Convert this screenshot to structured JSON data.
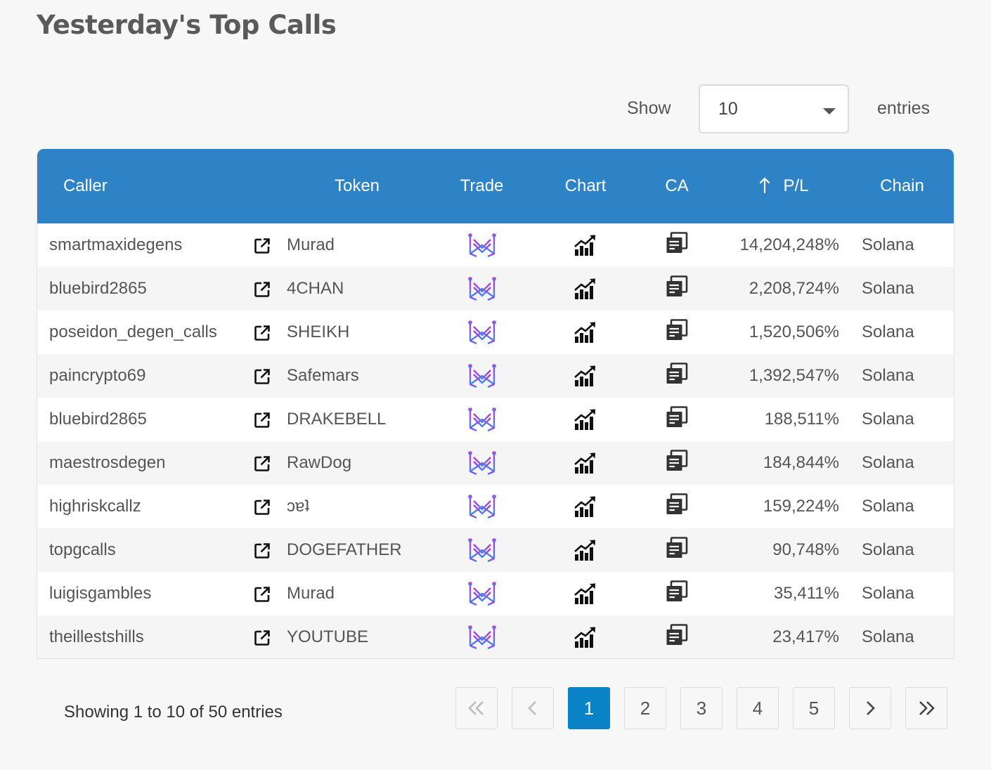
{
  "page": {
    "title": "Yesterday's Top Calls"
  },
  "length_menu": {
    "show_label": "Show",
    "selected": "10",
    "entries_label": "entries"
  },
  "table": {
    "headers": {
      "caller": "Caller",
      "token": "Token",
      "trade": "Trade",
      "chart": "Chart",
      "ca": "CA",
      "pl": "P/L",
      "chain": "Chain"
    },
    "rows": [
      {
        "caller": "smartmaxidegens",
        "token": "Murad",
        "pl": "14,204,248%",
        "chain": "Solana"
      },
      {
        "caller": "bluebird2865",
        "token": "4CHAN",
        "pl": "2,208,724%",
        "chain": "Solana"
      },
      {
        "caller": "poseidon_degen_calls",
        "token": "SHEIKH",
        "pl": "1,520,506%",
        "chain": "Solana"
      },
      {
        "caller": "paincrypto69",
        "token": "Safemars",
        "pl": "1,392,547%",
        "chain": "Solana"
      },
      {
        "caller": "bluebird2865",
        "token": "DRAKEBELL",
        "pl": "188,511%",
        "chain": "Solana"
      },
      {
        "caller": "maestrosdegen",
        "token": "RawDog",
        "pl": "184,844%",
        "chain": "Solana"
      },
      {
        "caller": "highriskcallz",
        "token": "ɔɐʇ",
        "pl": "159,224%",
        "chain": "Solana"
      },
      {
        "caller": "topgcalls",
        "token": "DOGEFATHER",
        "pl": "90,748%",
        "chain": "Solana"
      },
      {
        "caller": "luigisgambles",
        "token": "Murad",
        "pl": "35,411%",
        "chain": "Solana"
      },
      {
        "caller": "theillestshills",
        "token": "YOUTUBE",
        "pl": "23,417%",
        "chain": "Solana"
      }
    ]
  },
  "info": "Showing 1 to 10 of 50 entries",
  "pagination": {
    "first": "«",
    "prev": "‹",
    "pages": [
      "1",
      "2",
      "3",
      "4",
      "5"
    ],
    "current": "1",
    "next": "›",
    "last": "»"
  },
  "colors": {
    "header_bg": "#2e83c6",
    "active_page": "#0a83c6",
    "trade_gradient_start": "#c62be0",
    "trade_gradient_end": "#3e8af0"
  },
  "icons": {
    "link": "external-link-icon",
    "trade": "maestro-logo-icon",
    "chart": "bar-chart-up-icon",
    "ca": "copy-document-icon",
    "sort": "arrow-up-icon"
  }
}
